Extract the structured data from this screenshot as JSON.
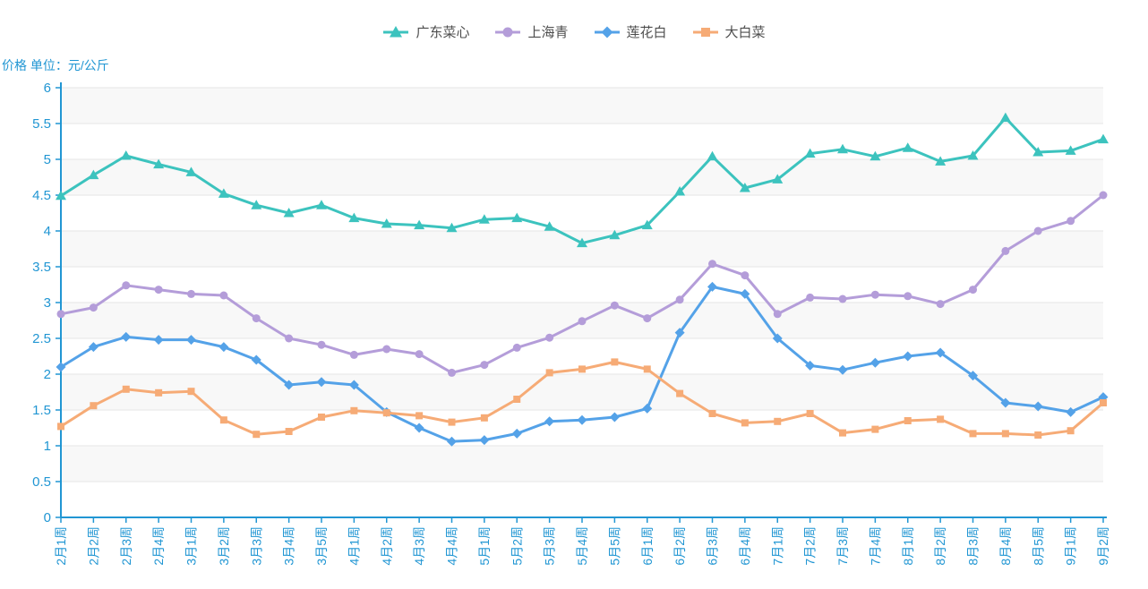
{
  "legend": {
    "items": [
      {
        "label": "广东菜心",
        "color": "#3cc3be",
        "symbol": "triangle"
      },
      {
        "label": "上海青",
        "color": "#b49dd9",
        "symbol": "circle"
      },
      {
        "label": "莲花白",
        "color": "#54a2e8",
        "symbol": "diamond"
      },
      {
        "label": "大白菜",
        "color": "#f6ab76",
        "symbol": "square"
      }
    ]
  },
  "chart_data": {
    "type": "line",
    "title": "价格 单位：元/公斤",
    "legend_position": "top-center",
    "grid": true,
    "x_label_rotate": 90,
    "axis_color": "#2196d3",
    "grid_line_color": "#e6e6e6",
    "split_band_color": "rgba(200,200,200,0.13)",
    "y_axis": {
      "min": 0,
      "max": 6,
      "interval": 0.5,
      "labels": [
        "0",
        "0.5",
        "1",
        "1.5",
        "2",
        "2.5",
        "3",
        "3.5",
        "4",
        "4.5",
        "5",
        "5.5",
        "6"
      ]
    },
    "categories": [
      "2月1周",
      "2月2周",
      "2月3周",
      "2月4周",
      "3月1周",
      "3月2周",
      "3月3周",
      "3月4周",
      "3月5周",
      "4月1周",
      "4月2周",
      "4月3周",
      "4月4周",
      "5月1周",
      "5月2周",
      "5月3周",
      "5月4周",
      "5月5周",
      "6月1周",
      "6月2周",
      "6月3周",
      "6月4周",
      "7月1周",
      "7月2周",
      "7月3周",
      "7月4周",
      "8月1周",
      "8月2周",
      "8月3周",
      "8月4周",
      "8月5周",
      "9月1周",
      "9月2周"
    ],
    "series": [
      {
        "name": "广东菜心",
        "symbol": "triangle",
        "color": "#3cc3be",
        "values": [
          4.49,
          4.78,
          5.05,
          4.93,
          4.82,
          4.52,
          4.36,
          4.25,
          4.36,
          4.18,
          4.1,
          4.08,
          4.04,
          4.16,
          4.18,
          4.06,
          3.83,
          3.94,
          4.08,
          4.55,
          5.04,
          4.6,
          4.72,
          5.08,
          5.14,
          5.04,
          5.16,
          4.97,
          5.05,
          5.58,
          5.1,
          5.12,
          5.28
        ]
      },
      {
        "name": "上海青",
        "symbol": "circle",
        "color": "#b49dd9",
        "values": [
          2.84,
          2.93,
          3.24,
          3.18,
          3.12,
          3.1,
          2.78,
          2.5,
          2.41,
          2.27,
          2.35,
          2.28,
          2.02,
          2.13,
          2.37,
          2.51,
          2.74,
          2.96,
          2.78,
          3.04,
          3.54,
          3.38,
          2.84,
          3.07,
          3.05,
          3.11,
          3.09,
          2.98,
          3.18,
          3.72,
          4.0,
          4.14,
          4.5
        ]
      },
      {
        "name": "莲花白",
        "symbol": "diamond",
        "color": "#54a2e8",
        "values": [
          2.1,
          2.38,
          2.52,
          2.48,
          2.48,
          2.38,
          2.2,
          1.85,
          1.89,
          1.85,
          1.47,
          1.25,
          1.06,
          1.08,
          1.17,
          1.34,
          1.36,
          1.4,
          1.52,
          2.58,
          3.22,
          3.12,
          2.5,
          2.12,
          2.06,
          2.16,
          2.25,
          2.3,
          1.98,
          1.6,
          1.55,
          1.47,
          1.68
        ]
      },
      {
        "name": "大白菜",
        "symbol": "square",
        "color": "#f6ab76",
        "values": [
          1.27,
          1.56,
          1.79,
          1.74,
          1.76,
          1.36,
          1.16,
          1.2,
          1.4,
          1.49,
          1.46,
          1.42,
          1.33,
          1.39,
          1.65,
          2.02,
          2.07,
          2.17,
          2.07,
          1.73,
          1.45,
          1.32,
          1.34,
          1.45,
          1.18,
          1.23,
          1.35,
          1.37,
          1.17,
          1.17,
          1.15,
          1.21,
          1.6
        ]
      }
    ]
  }
}
